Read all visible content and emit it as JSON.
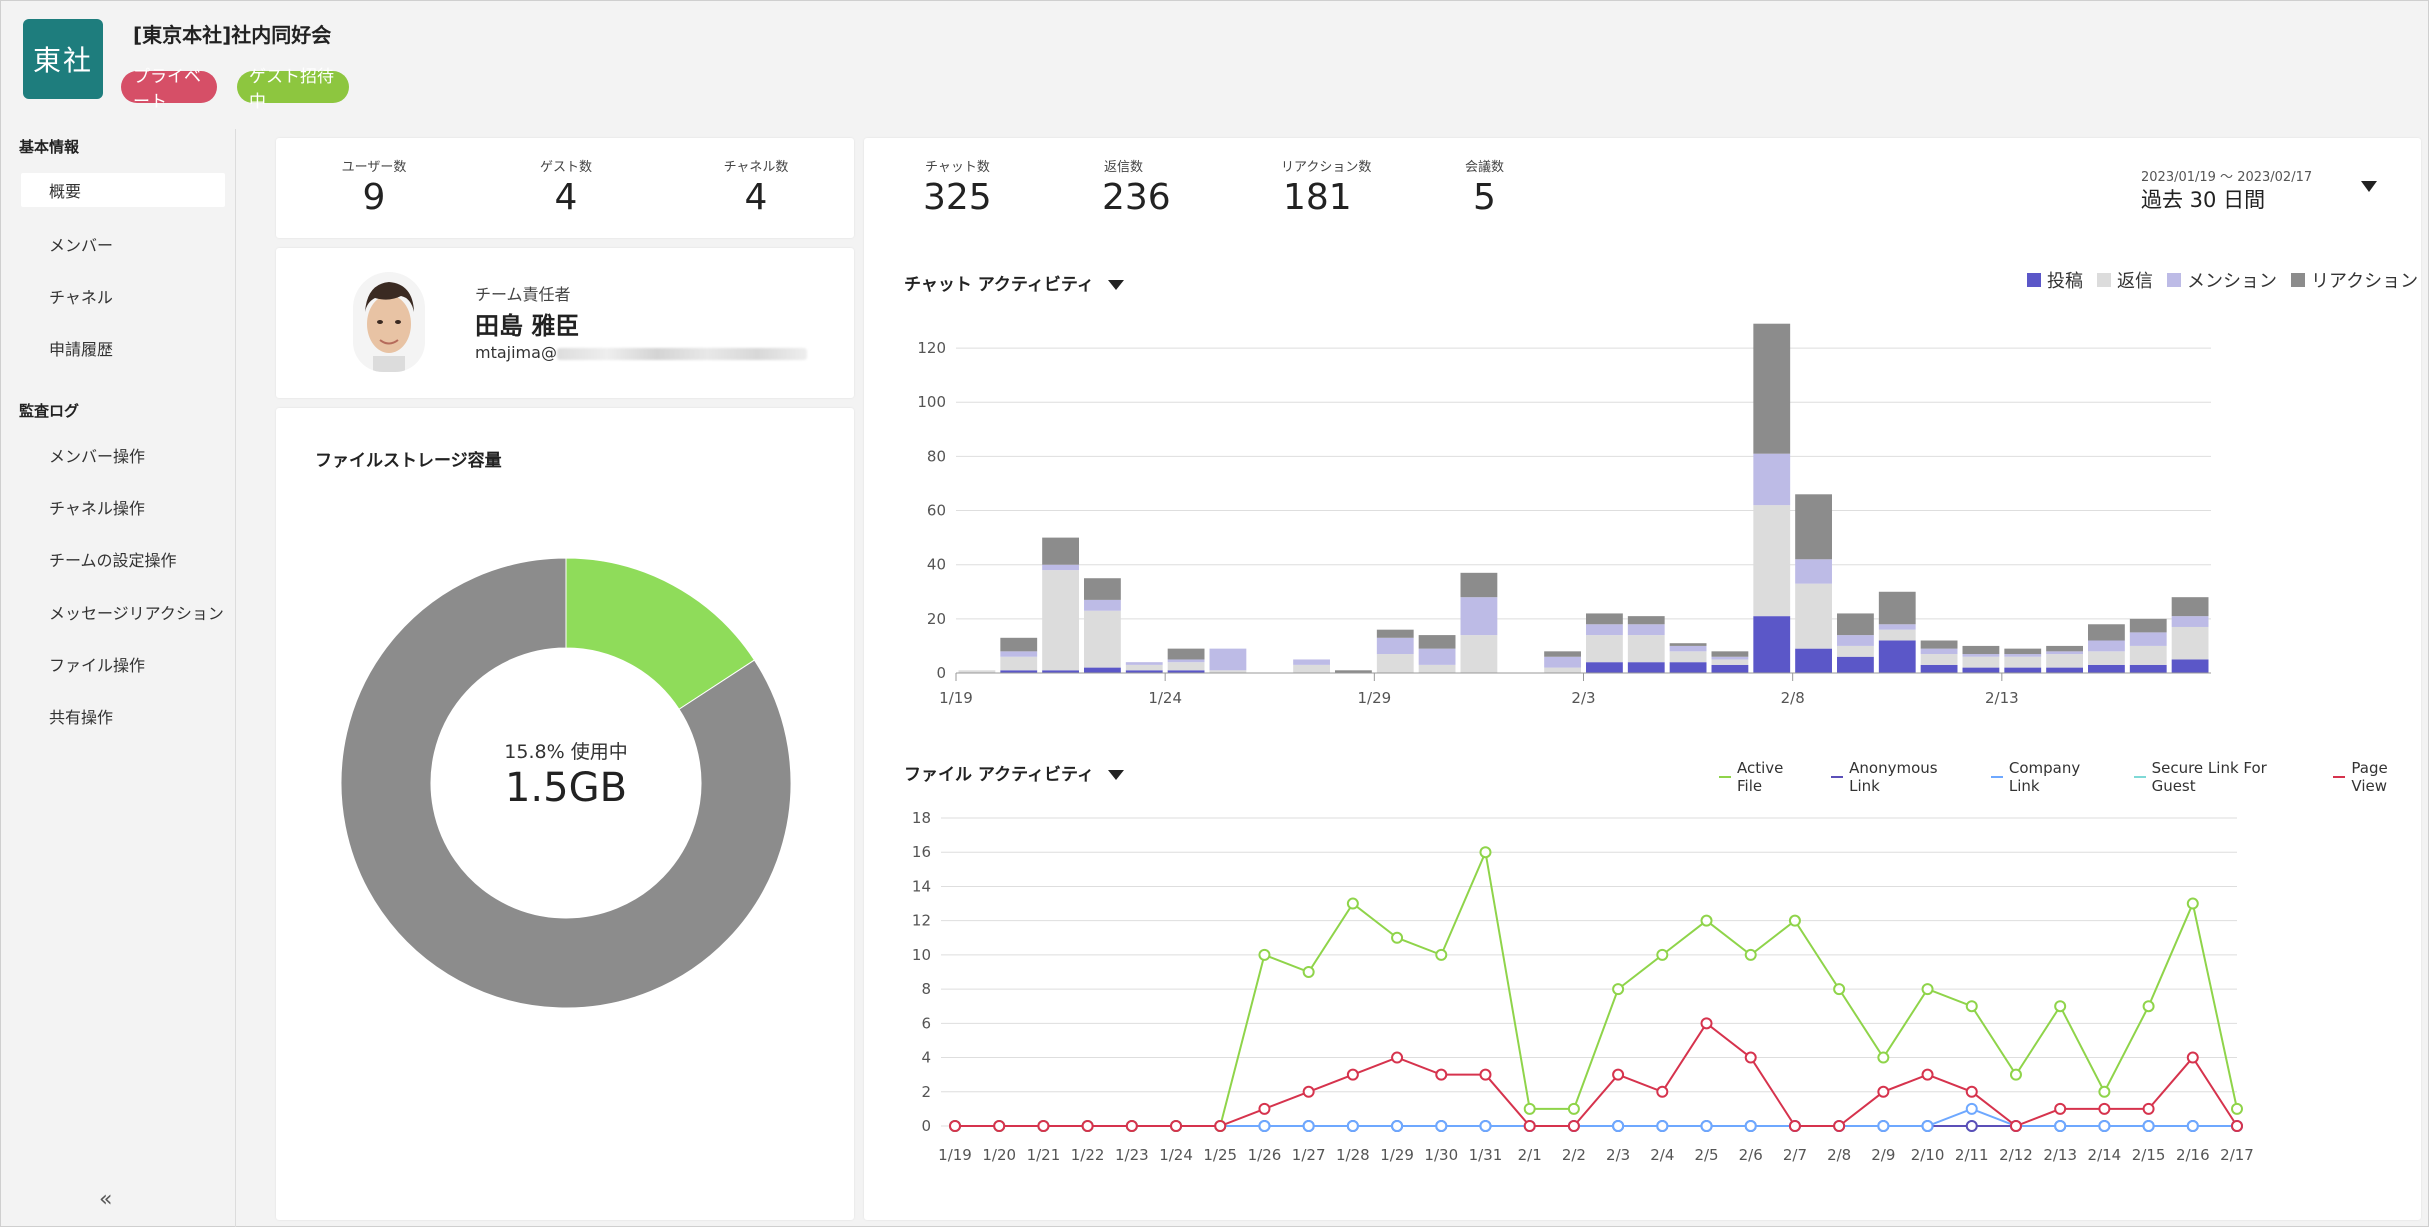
{
  "team": {
    "logo_text": "東社",
    "title": "[東京本社]社内同好会",
    "badges": {
      "private": "プライベート",
      "guest": "ゲスト招待中"
    },
    "colors": {
      "logo": "#1e7d7d",
      "private": "#d64f67",
      "guest": "#8dc63f"
    }
  },
  "sidebar": {
    "group1": "基本情報",
    "group1_items": [
      {
        "label": "概要",
        "active": true
      },
      {
        "label": "メンバー"
      },
      {
        "label": "チャネル"
      },
      {
        "label": "申請履歴"
      }
    ],
    "group2": "監査ログ",
    "group2_items": [
      {
        "label": "メンバー操作"
      },
      {
        "label": "チャネル操作"
      },
      {
        "label": "チームの設定操作"
      },
      {
        "label": "メッセージリアクション"
      },
      {
        "label": "ファイル操作"
      },
      {
        "label": "共有操作"
      }
    ],
    "collapse_icon": "«"
  },
  "stats_left": [
    {
      "label": "ユーザー数",
      "value": "9"
    },
    {
      "label": "ゲスト数",
      "value": "4"
    },
    {
      "label": "チャネル数",
      "value": "4"
    }
  ],
  "owner": {
    "label": "チーム責任者",
    "name": "田島 雅臣",
    "email_prefix": "mtajima@"
  },
  "storage": {
    "title": "ファイルストレージ容量",
    "usage_text": "15.8% 使用中",
    "size_text": "1.5GB",
    "used_fraction": 0.158,
    "colors": {
      "used": "#8fdc5a",
      "free": "#8c8c8c"
    }
  },
  "stats_right": [
    {
      "label": "チャット数",
      "value": "325"
    },
    {
      "label": "返信数",
      "value": "236"
    },
    {
      "label": "リアクション数",
      "value": "181"
    },
    {
      "label": "会議数",
      "value": "5"
    }
  ],
  "date_filter": {
    "range": "2023/01/19 ～ 2023/02/17",
    "selected": "過去 30 日間"
  },
  "chat_activity": {
    "title": "チャット アクティビティ",
    "legend": [
      "投稿",
      "返信",
      "メンション",
      "リアクション"
    ],
    "colors": [
      "#5b57c8",
      "#dcdcdc",
      "#bdbbe6",
      "#8c8c8c"
    ]
  },
  "file_activity": {
    "title": "ファイル アクティビティ",
    "legend": [
      "Active File",
      "Anonymous Link",
      "Company Link",
      "Secure Link For Guest",
      "Page View"
    ],
    "colors": [
      "#8fd44a",
      "#5b4fb8",
      "#6ea8ff",
      "#7fd9d6",
      "#d6334d"
    ]
  },
  "chart_data": [
    {
      "type": "bar",
      "stacked": true,
      "x": [
        "1/19",
        "1/20",
        "1/21",
        "1/22",
        "1/23",
        "1/24",
        "1/25",
        "1/26",
        "1/27",
        "1/28",
        "1/29",
        "1/30",
        "1/31",
        "2/1",
        "2/2",
        "2/3",
        "2/4",
        "2/5",
        "2/6",
        "2/7",
        "2/8",
        "2/9",
        "2/10",
        "2/11",
        "2/12",
        "2/13",
        "2/14",
        "2/15",
        "2/16",
        "2/17"
      ],
      "xticks": [
        "1/19",
        "1/24",
        "1/29",
        "2/3",
        "2/8",
        "2/13"
      ],
      "ylim": [
        0,
        130
      ],
      "yticks": [
        0,
        20,
        40,
        60,
        80,
        100,
        120
      ],
      "series": [
        {
          "name": "投稿",
          "values": [
            0,
            1,
            1,
            2,
            1,
            1,
            0,
            0,
            0,
            0,
            0,
            0,
            0,
            0,
            0,
            4,
            4,
            4,
            3,
            21,
            9,
            6,
            12,
            3,
            2,
            2,
            2,
            3,
            3,
            5
          ]
        },
        {
          "name": "返信",
          "values": [
            1,
            5,
            37,
            21,
            2,
            3,
            1,
            0,
            3,
            0,
            7,
            3,
            14,
            0,
            2,
            10,
            10,
            4,
            2,
            41,
            24,
            4,
            4,
            4,
            4,
            4,
            5,
            5,
            7,
            12
          ]
        },
        {
          "name": "メンション",
          "values": [
            0,
            2,
            2,
            4,
            1,
            1,
            8,
            0,
            2,
            0,
            6,
            6,
            14,
            0,
            4,
            4,
            4,
            2,
            1,
            19,
            9,
            4,
            2,
            2,
            1,
            1,
            1,
            4,
            5,
            4
          ]
        },
        {
          "name": "リアクション",
          "values": [
            0,
            5,
            10,
            8,
            0,
            4,
            0,
            0,
            0,
            1,
            3,
            5,
            9,
            0,
            2,
            4,
            3,
            1,
            2,
            48,
            24,
            8,
            12,
            3,
            3,
            2,
            2,
            6,
            5,
            7
          ]
        }
      ]
    },
    {
      "type": "line",
      "x": [
        "1/19",
        "1/20",
        "1/21",
        "1/22",
        "1/23",
        "1/24",
        "1/25",
        "1/26",
        "1/27",
        "1/28",
        "1/29",
        "1/30",
        "1/31",
        "2/1",
        "2/2",
        "2/3",
        "2/4",
        "2/5",
        "2/6",
        "2/7",
        "2/8",
        "2/9",
        "2/10",
        "2/11",
        "2/12",
        "2/13",
        "2/14",
        "2/15",
        "2/16",
        "2/17"
      ],
      "ylim": [
        0,
        18
      ],
      "yticks": [
        0,
        2,
        4,
        6,
        8,
        10,
        12,
        14,
        16,
        18
      ],
      "series": [
        {
          "name": "Active File",
          "values": [
            0,
            0,
            0,
            0,
            0,
            0,
            0,
            10,
            9,
            13,
            11,
            10,
            16,
            1,
            1,
            8,
            10,
            12,
            10,
            12,
            8,
            4,
            8,
            7,
            3,
            7,
            2,
            7,
            13,
            1
          ]
        },
        {
          "name": "Anonymous Link",
          "values": [
            0,
            0,
            0,
            0,
            0,
            0,
            0,
            0,
            0,
            0,
            0,
            0,
            0,
            0,
            0,
            0,
            0,
            0,
            0,
            0,
            0,
            0,
            0,
            0,
            0,
            0,
            0,
            0,
            0,
            0
          ]
        },
        {
          "name": "Company Link",
          "values": [
            0,
            0,
            0,
            0,
            0,
            0,
            0,
            0,
            0,
            0,
            0,
            0,
            0,
            0,
            0,
            0,
            0,
            0,
            0,
            0,
            0,
            0,
            0,
            1,
            0,
            0,
            0,
            0,
            0,
            0
          ]
        },
        {
          "name": "Secure Link For Guest",
          "values": [
            0,
            0,
            0,
            0,
            0,
            0,
            0,
            0,
            0,
            0,
            0,
            0,
            0,
            0,
            0,
            0,
            0,
            0,
            0,
            0,
            0,
            0,
            0,
            0,
            0,
            0,
            0,
            0,
            0,
            0
          ]
        },
        {
          "name": "Page View",
          "values": [
            0,
            0,
            0,
            0,
            0,
            0,
            0,
            1,
            2,
            3,
            4,
            3,
            3,
            0,
            0,
            3,
            2,
            6,
            4,
            0,
            0,
            2,
            3,
            2,
            0,
            1,
            1,
            1,
            4,
            0
          ]
        }
      ]
    }
  ]
}
